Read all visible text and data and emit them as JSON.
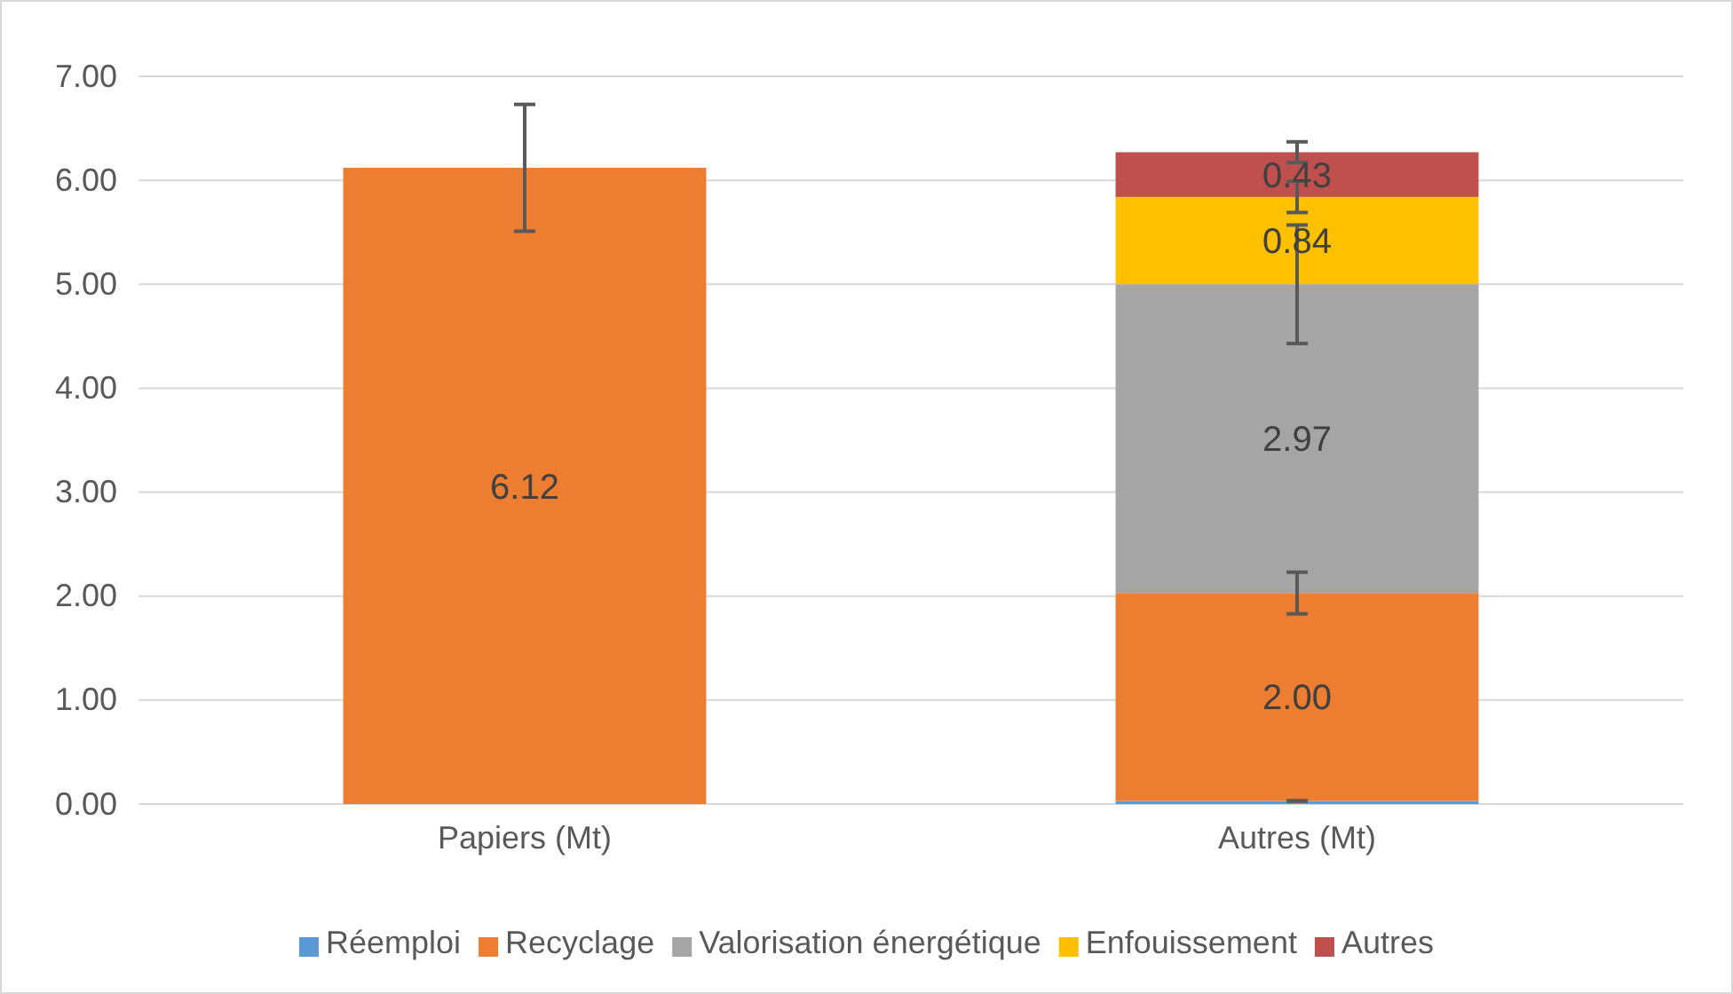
{
  "chart_data": {
    "type": "bar",
    "stacked": true,
    "categories": [
      "Papiers (Mt)",
      "Autres (Mt)"
    ],
    "series": [
      {
        "name": "Réemploi",
        "color": "#5b9bd5",
        "values": [
          null,
          0.03
        ],
        "errors": [
          null,
          0
        ],
        "value_labels": [
          null,
          null
        ]
      },
      {
        "name": "Recyclage",
        "color": "#ed7d31",
        "values": [
          6.12,
          2.0
        ],
        "errors": [
          0.61,
          0.2
        ],
        "value_labels": [
          "6.12",
          "2.00"
        ]
      },
      {
        "name": "Valorisation énergétique",
        "color": "#a5a5a5",
        "values": [
          null,
          2.97
        ],
        "errors": [
          null,
          0.57
        ],
        "value_labels": [
          null,
          "2.97"
        ]
      },
      {
        "name": "Enfouissement",
        "color": "#ffc000",
        "values": [
          null,
          0.84
        ],
        "errors": [
          null,
          0.15
        ],
        "value_labels": [
          null,
          "0.84"
        ]
      },
      {
        "name": "Autres",
        "color": "#c0504d",
        "values": [
          null,
          0.43
        ],
        "errors": [
          null,
          0.1
        ],
        "value_labels": [
          null,
          "0.43"
        ]
      }
    ],
    "ylim": [
      0,
      7
    ],
    "yticks": [
      {
        "value": 0,
        "label": "0.00"
      },
      {
        "value": 1,
        "label": "1.00"
      },
      {
        "value": 2,
        "label": "2.00"
      },
      {
        "value": 3,
        "label": "3.00"
      },
      {
        "value": 4,
        "label": "4.00"
      },
      {
        "value": 5,
        "label": "5.00"
      },
      {
        "value": 6,
        "label": "6.00"
      },
      {
        "value": 7,
        "label": "7.00"
      }
    ],
    "grid": "y",
    "legend": "bottom"
  }
}
